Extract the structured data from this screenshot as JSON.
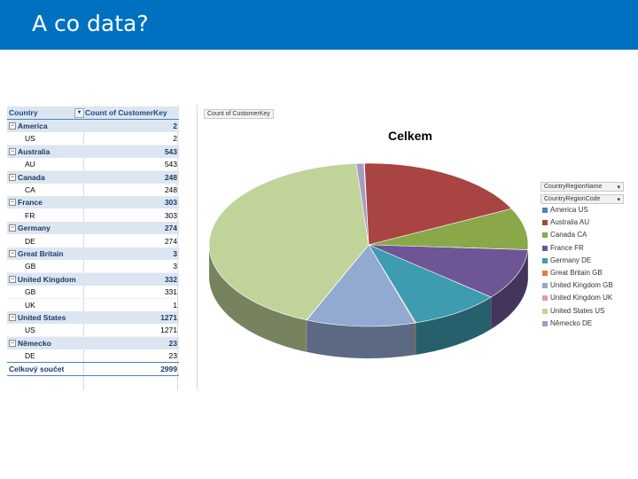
{
  "slide": {
    "title": "A co data?"
  },
  "pivot": {
    "header": {
      "row_label": "Country",
      "value_label": "Count of CustomerKey"
    },
    "rows": [
      {
        "type": "group",
        "label": "America",
        "value": "2"
      },
      {
        "type": "sub",
        "label": "US",
        "value": "2"
      },
      {
        "type": "group",
        "label": "Australia",
        "value": "543"
      },
      {
        "type": "sub",
        "label": "AU",
        "value": "543"
      },
      {
        "type": "group",
        "label": "Canada",
        "value": "248"
      },
      {
        "type": "sub",
        "label": "CA",
        "value": "248"
      },
      {
        "type": "group",
        "label": "France",
        "value": "303"
      },
      {
        "type": "sub",
        "label": "FR",
        "value": "303"
      },
      {
        "type": "group",
        "label": "Germany",
        "value": "274"
      },
      {
        "type": "sub",
        "label": "DE",
        "value": "274"
      },
      {
        "type": "group",
        "label": "Great Britain",
        "value": "3"
      },
      {
        "type": "sub",
        "label": "GB",
        "value": "3"
      },
      {
        "type": "group",
        "label": "United Kingdom",
        "value": "332"
      },
      {
        "type": "sub",
        "label": "GB",
        "value": "331"
      },
      {
        "type": "sub",
        "label": "UK",
        "value": "1"
      },
      {
        "type": "group",
        "label": "United States",
        "value": "1271"
      },
      {
        "type": "sub",
        "label": "US",
        "value": "1271"
      },
      {
        "type": "group",
        "label": "Německo",
        "value": "23"
      },
      {
        "type": "sub",
        "label": "DE",
        "value": "23"
      }
    ],
    "total": {
      "label": "Celkový součet",
      "value": "2999"
    }
  },
  "chart_field_buttons": {
    "values_field": "Count of CustomerKey",
    "legend_field_1": "CountryRegionName",
    "legend_field_2": "CountryRegionCode"
  },
  "chart_data": {
    "type": "pie",
    "title": "Celkem",
    "labels": [
      "America US",
      "Australia AU",
      "Canada CA",
      "France FR",
      "Germany DE",
      "Great Britain GB",
      "United Kingdom GB",
      "United Kingdom UK",
      "United States US",
      "Německo DE"
    ],
    "values": [
      2,
      543,
      248,
      303,
      274,
      3,
      331,
      1,
      1271,
      23
    ],
    "colors": [
      "#4f81bd",
      "#a84442",
      "#8aa84a",
      "#6e5595",
      "#3e9bb0",
      "#e0803a",
      "#92a9d1",
      "#d9a0a0",
      "#c0d49a",
      "#a99bc0"
    ],
    "legend_position": "right"
  }
}
